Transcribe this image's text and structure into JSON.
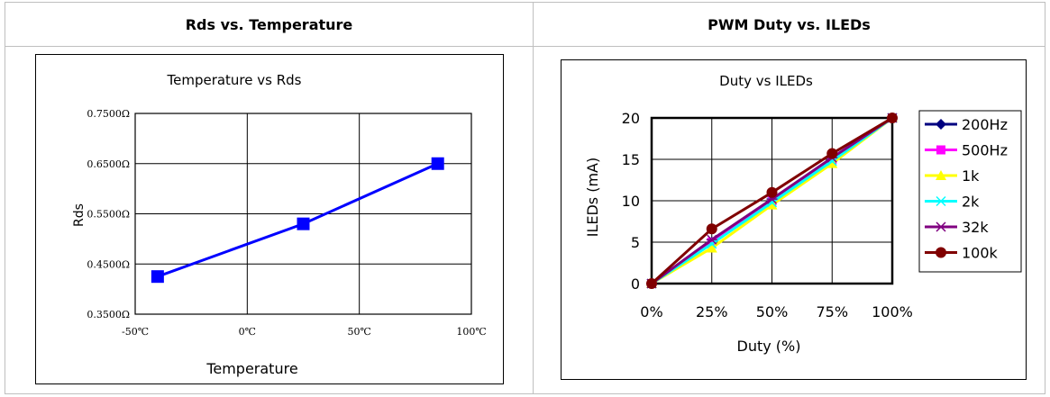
{
  "table": {
    "headers": [
      "Rds vs. Temperature",
      "PWM Duty vs. ILEDs"
    ]
  },
  "chart_data": [
    {
      "type": "line",
      "title": "Temperature vs Rds",
      "xlabel": "Temperature",
      "ylabel": "Rds",
      "xlim": [
        -50,
        100
      ],
      "ylim": [
        0.35,
        0.75
      ],
      "x_tick_labels": [
        "-50℃",
        "0℃",
        "50℃",
        "100℃"
      ],
      "y_tick_labels": [
        "0.3500Ω",
        "0.4500Ω",
        "0.5500Ω",
        "0.6500Ω",
        "0.7500Ω"
      ],
      "grid": true,
      "color": "#0000ff",
      "x": [
        -40,
        25,
        85
      ],
      "values": [
        0.425,
        0.53,
        0.65
      ]
    },
    {
      "type": "line",
      "title": "Duty vs ILEDs",
      "xlabel": "Duty (%)",
      "ylabel": "ILEDs (mA)",
      "categories": [
        "0%",
        "25%",
        "50%",
        "75%",
        "100%"
      ],
      "ylim": [
        0,
        20
      ],
      "y_tick_labels": [
        "0",
        "5",
        "10",
        "15",
        "20"
      ],
      "grid": true,
      "legend_position": "right",
      "series": [
        {
          "name": "200Hz",
          "color": "#000080",
          "marker": "diamond",
          "values": [
            0,
            5,
            10,
            15,
            20
          ]
        },
        {
          "name": "500Hz",
          "color": "#ff00ff",
          "marker": "square",
          "values": [
            0,
            5,
            10,
            15,
            20
          ]
        },
        {
          "name": "1k",
          "color": "#ffff00",
          "marker": "triangle",
          "values": [
            0,
            4.3,
            9.5,
            14.5,
            20
          ]
        },
        {
          "name": "2k",
          "color": "#00ffff",
          "marker": "x",
          "values": [
            0,
            4.8,
            9.8,
            14.8,
            20
          ]
        },
        {
          "name": "32k",
          "color": "#800080",
          "marker": "star",
          "values": [
            0,
            5.3,
            10.2,
            15.2,
            20
          ]
        },
        {
          "name": "100k",
          "color": "#800000",
          "marker": "circle",
          "values": [
            0,
            6.6,
            11.0,
            15.7,
            20
          ]
        }
      ]
    }
  ]
}
